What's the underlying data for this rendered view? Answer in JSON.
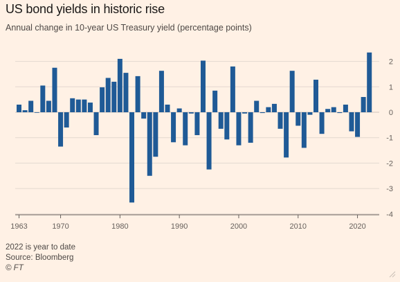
{
  "header": {
    "title": "US bond yields in historic rise",
    "subtitle": "Annual change in 10-year US Treasury yield (percentage points)"
  },
  "footer": {
    "note": "2022 is year to date",
    "source": "Source: Bloomberg",
    "credit": "© FT"
  },
  "colors": {
    "background": "#fff1e5",
    "bar": "#1f5a96",
    "grid": "#e3d8cf",
    "axis_text": "#66605c"
  },
  "chart_data": {
    "type": "bar",
    "title": "US bond yields in historic rise",
    "subtitle": "Annual change in 10-year US Treasury yield (percentage points)",
    "xlabel": "",
    "ylabel": "",
    "y_axis_position": "right",
    "ylim": [
      -4,
      2.5
    ],
    "yticks": [
      2,
      1,
      0,
      -1,
      -2,
      -3,
      -4
    ],
    "grid": true,
    "x_tick_labels": [
      "1963",
      "1970",
      "1980",
      "1990",
      "2000",
      "2010",
      "2020"
    ],
    "x_tick_years": [
      1963,
      1970,
      1980,
      1990,
      2000,
      2010,
      2020
    ],
    "categories": [
      1963,
      1964,
      1965,
      1966,
      1967,
      1968,
      1969,
      1970,
      1971,
      1972,
      1973,
      1974,
      1975,
      1976,
      1977,
      1978,
      1979,
      1980,
      1981,
      1982,
      1983,
      1984,
      1985,
      1986,
      1987,
      1988,
      1989,
      1990,
      1991,
      1992,
      1993,
      1994,
      1995,
      1996,
      1997,
      1998,
      1999,
      2000,
      2001,
      2002,
      2003,
      2004,
      2005,
      2006,
      2007,
      2008,
      2009,
      2010,
      2011,
      2012,
      2013,
      2014,
      2015,
      2016,
      2017,
      2018,
      2019,
      2020,
      2021,
      2022
    ],
    "values": [
      0.3,
      0.08,
      0.45,
      0.0,
      1.05,
      0.45,
      1.75,
      -1.35,
      -0.6,
      0.55,
      0.5,
      0.5,
      0.38,
      -0.9,
      0.98,
      1.35,
      1.2,
      2.1,
      1.55,
      -3.55,
      1.42,
      -0.25,
      -2.5,
      -1.75,
      1.63,
      0.3,
      -1.18,
      0.15,
      -1.3,
      -0.05,
      -0.9,
      2.03,
      -2.25,
      0.85,
      -0.65,
      -1.07,
      1.8,
      -1.3,
      -0.05,
      -1.2,
      0.45,
      -0.03,
      0.2,
      0.33,
      -0.65,
      -1.78,
      1.63,
      -0.53,
      -1.4,
      -0.1,
      1.28,
      -0.85,
      0.13,
      0.2,
      -0.03,
      0.3,
      -0.75,
      -0.97,
      0.6,
      2.35
    ]
  }
}
